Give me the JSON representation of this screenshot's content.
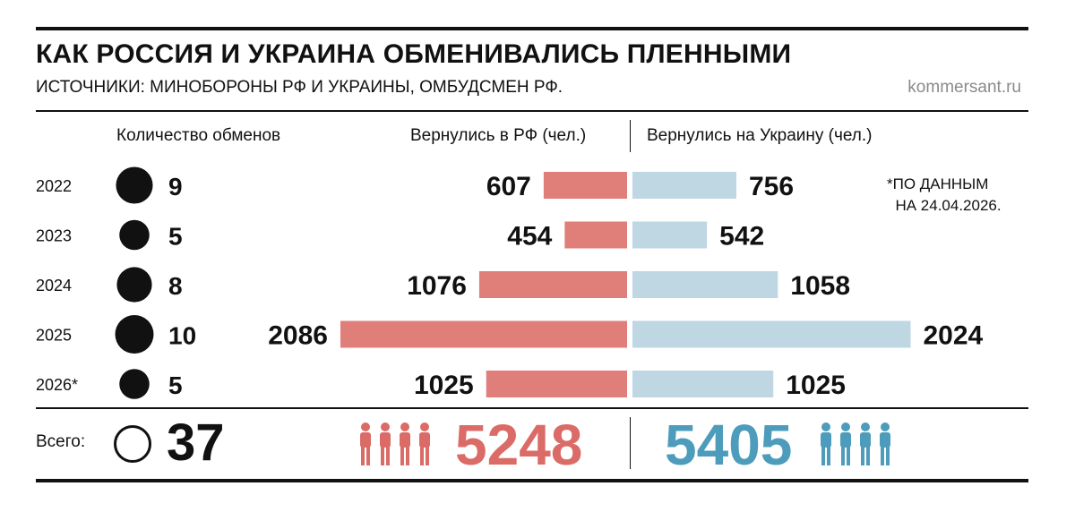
{
  "header": {
    "title": "КАК РОССИЯ И УКРАИНА ОБМЕНИВАЛИСЬ ПЛЕННЫМИ",
    "subtitle": "ИСТОЧНИКИ: МИНОБОРОНЫ РФ И УКРАИНЫ, ОМБУДСМЕН РФ.",
    "source": "kommersant.ru"
  },
  "columns": {
    "exchanges": "Количество обменов",
    "to_russia": "Вернулись в РФ (чел.)",
    "to_ukraine": "Вернулись на Украину (чел.)"
  },
  "note": "*ПО ДАННЫМ\n  НА 24.04.2026.",
  "totals": {
    "label": "Всего:",
    "exchanges": "37",
    "to_russia": "5248",
    "to_ukraine": "5405"
  },
  "colors": {
    "russia": "#e07e79",
    "ukraine": "#bfd7e3",
    "russia_total": "#db6b67",
    "ukraine_total": "#4d9cbb",
    "text": "#111111"
  },
  "chart_data": {
    "type": "bar",
    "categories": [
      "2022",
      "2023",
      "2024",
      "2025",
      "2026*"
    ],
    "series": [
      {
        "name": "Количество обменов",
        "values": [
          9,
          5,
          8,
          10,
          5
        ]
      },
      {
        "name": "Вернулись в РФ (чел.)",
        "values": [
          607,
          454,
          1076,
          2086,
          1025
        ]
      },
      {
        "name": "Вернулись на Украину (чел.)",
        "values": [
          756,
          542,
          1058,
          2024,
          1025
        ]
      }
    ]
  }
}
